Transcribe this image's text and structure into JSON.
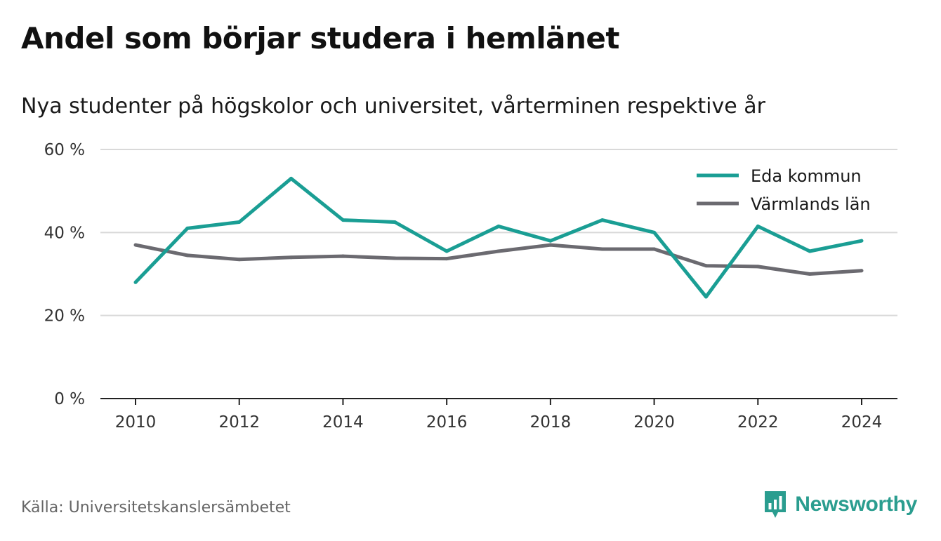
{
  "title": "Andel som börjar studera i hemlänet",
  "subtitle": "Nya studenter på högskolor och universitet, vårterminen respektive år",
  "source": "Källa: Universitetskanslersämbetet",
  "brand": {
    "name": "Newsworthy",
    "color": "#2a9d8f"
  },
  "chart_data": {
    "type": "line",
    "x": [
      2010,
      2011,
      2012,
      2013,
      2014,
      2015,
      2016,
      2017,
      2018,
      2019,
      2020,
      2021,
      2022,
      2023,
      2024
    ],
    "x_ticks": [
      2010,
      2012,
      2014,
      2016,
      2018,
      2020,
      2022,
      2024
    ],
    "x_tick_labels": [
      "2010",
      "2012",
      "2014",
      "2016",
      "2018",
      "2020",
      "2022",
      "2024"
    ],
    "y_ticks": [
      0,
      20,
      40,
      60
    ],
    "y_tick_labels": [
      "0 %",
      "20 %",
      "40 %",
      "60 %"
    ],
    "ylim": [
      0,
      60
    ],
    "xlim": [
      2010,
      2024
    ],
    "grid": true,
    "legend_position": "top-right",
    "series": [
      {
        "name": "Eda kommun",
        "color": "#1a9e94",
        "values": [
          28,
          41,
          42.5,
          53,
          43,
          42.5,
          35.5,
          41.5,
          38,
          43,
          40,
          24.5,
          41.5,
          35.5,
          38
        ]
      },
      {
        "name": "Värmlands län",
        "color": "#6b6a70",
        "values": [
          37,
          34.5,
          33.5,
          34,
          34.3,
          33.8,
          33.7,
          35.5,
          37,
          36,
          36,
          32,
          31.8,
          30,
          30.8
        ]
      }
    ]
  }
}
